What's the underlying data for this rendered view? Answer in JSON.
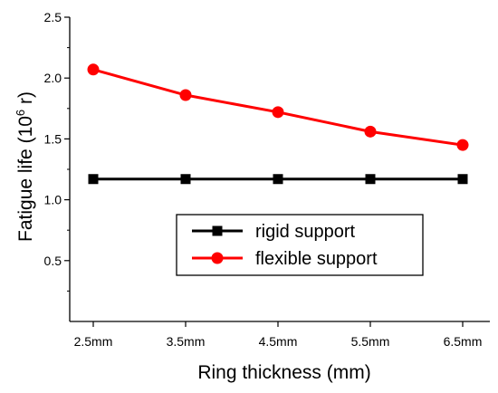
{
  "chart_data": {
    "type": "line",
    "title": "",
    "xlabel": "Ring thickness (mm)",
    "ylabel_main": "Fatigue life (10",
    "ylabel_sup": "6",
    "ylabel_tail": " r)",
    "categories": [
      "2.5mm",
      "3.5mm",
      "4.5mm",
      "5.5mm",
      "6.5mm"
    ],
    "yticks": [
      "0.5",
      "1.0",
      "1.5",
      "2.0",
      "2.5"
    ],
    "ylim": [
      0.0,
      2.5
    ],
    "grid": false,
    "legend_position": "center-right",
    "series": [
      {
        "name": "rigid support",
        "marker": "square",
        "color": "#000000",
        "values": [
          1.17,
          1.17,
          1.17,
          1.17,
          1.17
        ]
      },
      {
        "name": "flexible support",
        "marker": "circle",
        "color": "#ff0000",
        "values": [
          2.07,
          1.86,
          1.72,
          1.56,
          1.45
        ]
      }
    ]
  }
}
